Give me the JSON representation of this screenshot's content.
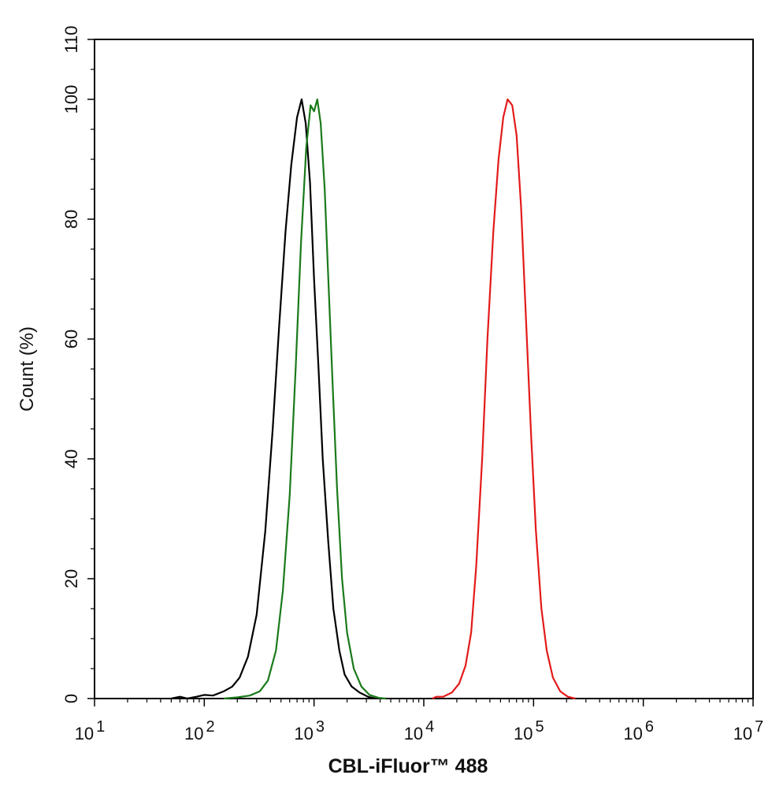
{
  "chart_data": {
    "type": "line",
    "title": "",
    "xlabel": "CBL-iFluor™ 488",
    "ylabel": "Count  (%)",
    "xscale": "log",
    "xlim": [
      10,
      10000000
    ],
    "ylim": [
      0,
      110
    ],
    "x_tick_labels": [
      {
        "base": "10",
        "exp": "1",
        "value": 10
      },
      {
        "base": "10",
        "exp": "2",
        "value": 100
      },
      {
        "base": "10",
        "exp": "3",
        "value": 1000
      },
      {
        "base": "10",
        "exp": "4",
        "value": 10000
      },
      {
        "base": "10",
        "exp": "5",
        "value": 100000
      },
      {
        "base": "10",
        "exp": "6",
        "value": 1000000
      },
      {
        "base": "10",
        "exp": "7",
        "value": 10000000
      }
    ],
    "y_ticks": [
      0,
      20,
      40,
      60,
      80,
      100,
      110
    ],
    "y_tick_labels": [
      "0",
      "20",
      "40",
      "60",
      "80",
      "100",
      "110"
    ],
    "grid": false,
    "legend": "none",
    "series": [
      {
        "color": "#000000",
        "points": [
          [
            50,
            0
          ],
          [
            60,
            0.3
          ],
          [
            70,
            0
          ],
          [
            85,
            0.3
          ],
          [
            100,
            0.6
          ],
          [
            120,
            0.5
          ],
          [
            150,
            1.2
          ],
          [
            180,
            2.0
          ],
          [
            210,
            3.5
          ],
          [
            250,
            7
          ],
          [
            300,
            14
          ],
          [
            360,
            28
          ],
          [
            420,
            45
          ],
          [
            480,
            62
          ],
          [
            550,
            78
          ],
          [
            620,
            89
          ],
          [
            700,
            97
          ],
          [
            770,
            100
          ],
          [
            840,
            96
          ],
          [
            920,
            86
          ],
          [
            1000,
            70
          ],
          [
            1100,
            55
          ],
          [
            1200,
            40
          ],
          [
            1350,
            26
          ],
          [
            1500,
            15
          ],
          [
            1700,
            8
          ],
          [
            1900,
            4
          ],
          [
            2200,
            2
          ],
          [
            2600,
            1
          ],
          [
            3100,
            0.3
          ],
          [
            3600,
            0
          ]
        ]
      },
      {
        "color": "#1a7a1a",
        "points": [
          [
            150,
            0
          ],
          [
            200,
            0.2
          ],
          [
            260,
            0.5
          ],
          [
            320,
            1.2
          ],
          [
            380,
            3
          ],
          [
            450,
            8
          ],
          [
            520,
            18
          ],
          [
            600,
            34
          ],
          [
            680,
            55
          ],
          [
            760,
            76
          ],
          [
            850,
            92
          ],
          [
            930,
            99
          ],
          [
            1000,
            98
          ],
          [
            1070,
            100
          ],
          [
            1150,
            96
          ],
          [
            1250,
            85
          ],
          [
            1350,
            70
          ],
          [
            1480,
            52
          ],
          [
            1620,
            35
          ],
          [
            1800,
            20
          ],
          [
            2000,
            11
          ],
          [
            2300,
            5
          ],
          [
            2700,
            2
          ],
          [
            3200,
            0.6
          ],
          [
            3900,
            0.1
          ],
          [
            4500,
            0
          ]
        ]
      },
      {
        "color": "#e31a1a",
        "points": [
          [
            12000,
            0
          ],
          [
            13000,
            0.3
          ],
          [
            15000,
            0.3
          ],
          [
            18000,
            1
          ],
          [
            21000,
            2.5
          ],
          [
            24000,
            5.5
          ],
          [
            27000,
            11
          ],
          [
            30000,
            22
          ],
          [
            34000,
            40
          ],
          [
            38000,
            60
          ],
          [
            43000,
            78
          ],
          [
            48000,
            90
          ],
          [
            53000,
            97
          ],
          [
            58000,
            100
          ],
          [
            64000,
            99
          ],
          [
            70000,
            94
          ],
          [
            77000,
            82
          ],
          [
            85000,
            64
          ],
          [
            95000,
            44
          ],
          [
            105000,
            28
          ],
          [
            118000,
            15
          ],
          [
            132000,
            8
          ],
          [
            150000,
            3.5
          ],
          [
            175000,
            1.2
          ],
          [
            205000,
            0.3
          ],
          [
            240000,
            0
          ]
        ]
      }
    ]
  }
}
